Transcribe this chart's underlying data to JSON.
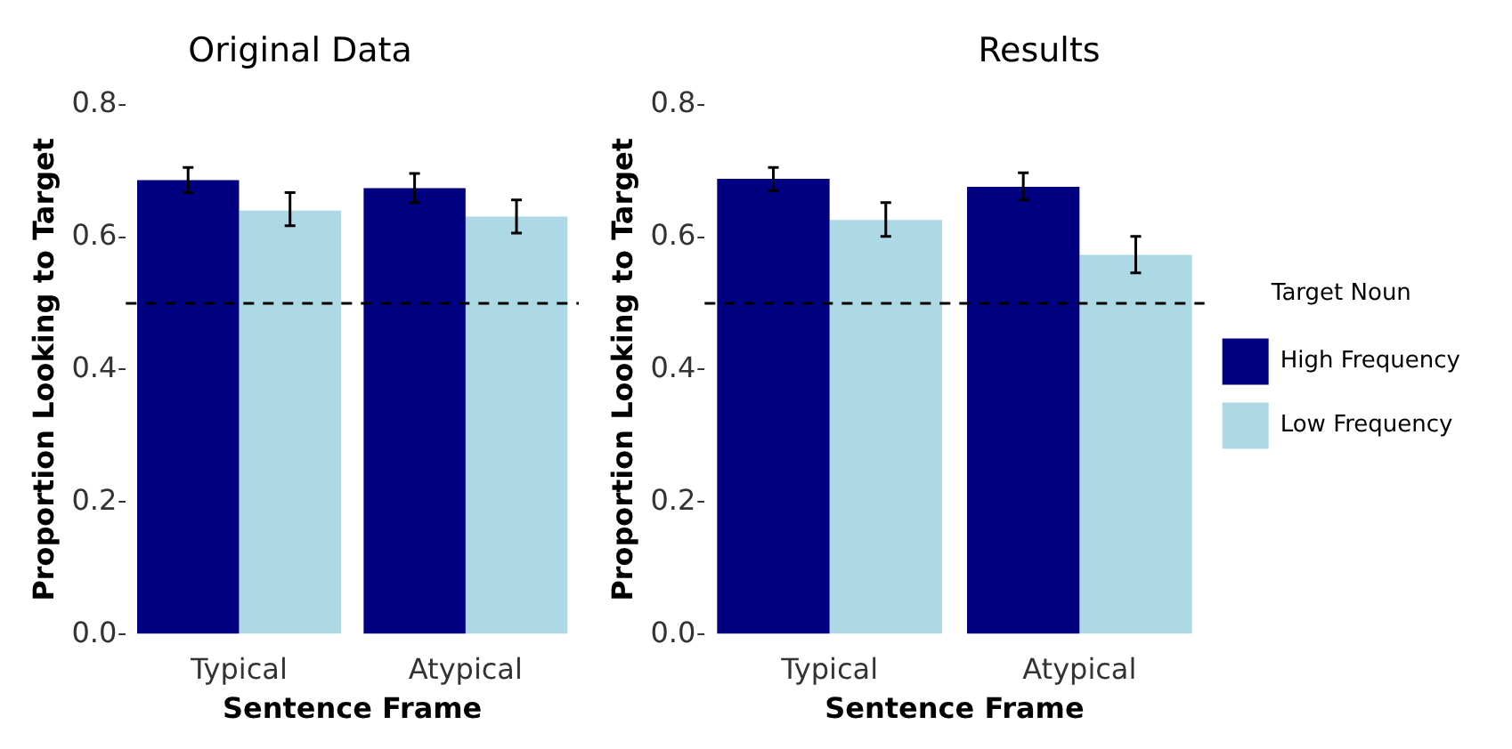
{
  "chart_data": [
    {
      "type": "bar",
      "title": "Original Data",
      "xlabel": "Sentence Frame",
      "ylabel": "Proportion Looking to Target",
      "categories": [
        "Typical",
        "Atypical"
      ],
      "series": [
        {
          "color": "#000080",
          "values": [
            0.686,
            0.674
          ],
          "errors": [
            [
              0.667,
              0.705
            ],
            [
              0.652,
              0.696
            ]
          ]
        },
        {
          "color": "#add8e6",
          "values": [
            0.64,
            0.631
          ],
          "errors": [
            [
              0.617,
              0.667
            ],
            [
              0.606,
              0.656
            ]
          ]
        }
      ],
      "ylim": [
        0,
        0.8
      ],
      "yticks": [
        {
          "value": 0,
          "label": "0.0"
        },
        {
          "value": 0.2,
          "label": "0.2"
        },
        {
          "value": 0.4,
          "label": "0.4"
        },
        {
          "value": 0.6,
          "label": "0.6"
        },
        {
          "value": 0.8,
          "label": "0.8"
        }
      ],
      "ref_lines": [
        {
          "axis": "y",
          "value": 0.5,
          "color": "#000000",
          "line_style": "dashed"
        }
      ],
      "grid": false,
      "legend": false
    },
    {
      "type": "bar",
      "title": "Results",
      "xlabel": "Sentence Frame",
      "ylabel": "Proportion Looking to Target",
      "legend_title": "Target Noun",
      "categories": [
        "Typical",
        "Atypical"
      ],
      "series": [
        {
          "name": "High Frequency",
          "color": "#000080",
          "values": [
            0.688,
            0.676
          ],
          "errors": [
            [
              0.67,
              0.705
            ],
            [
              0.656,
              0.697
            ]
          ]
        },
        {
          "name": "Low Frequency",
          "color": "#add8e6",
          "values": [
            0.626,
            0.573
          ],
          "errors": [
            [
              0.601,
              0.652
            ],
            [
              0.546,
              0.601
            ]
          ]
        }
      ],
      "ylim": [
        0,
        0.8
      ],
      "yticks": [
        {
          "value": 0,
          "label": "0.0"
        },
        {
          "value": 0.2,
          "label": "0.2"
        },
        {
          "value": 0.4,
          "label": "0.4"
        },
        {
          "value": 0.6,
          "label": "0.6"
        },
        {
          "value": 0.8,
          "label": "0.8"
        }
      ],
      "ref_lines": [
        {
          "axis": "y",
          "value": 0.5,
          "color": "#000000",
          "line_style": "dashed"
        }
      ],
      "grid": false,
      "legend": "right"
    }
  ]
}
